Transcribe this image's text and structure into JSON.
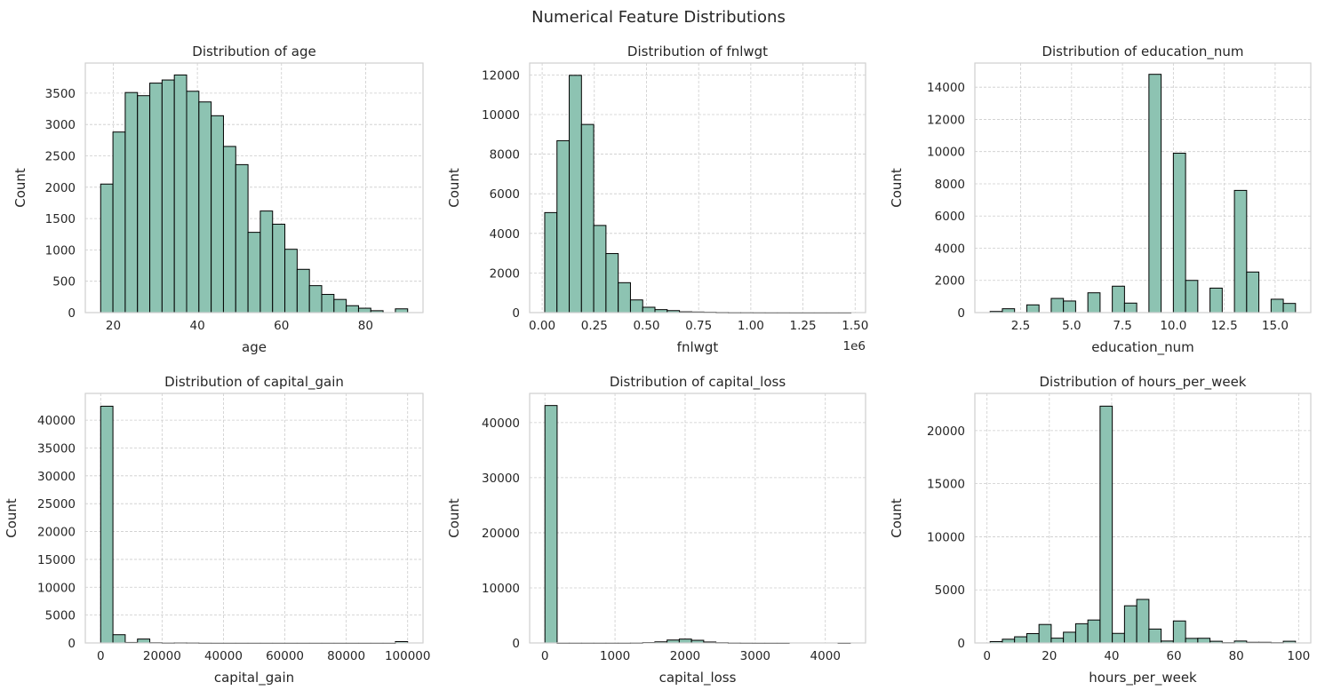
{
  "figure": {
    "title": "Numerical Feature Distributions",
    "bar_color": "#8dc3b2",
    "edge_color": "#000000"
  },
  "chart_data": [
    {
      "type": "bar",
      "title": "Distribution of age",
      "xlabel": "age",
      "ylabel": "Count",
      "xlim": [
        13.35,
        93.65
      ],
      "ylim": [
        0,
        3980
      ],
      "xticks": [
        20,
        40,
        60,
        80
      ],
      "xtick_labels": [
        "20",
        "40",
        "60",
        "80"
      ],
      "yticks": [
        0,
        500,
        1000,
        1500,
        2000,
        2500,
        3000,
        3500
      ],
      "ytick_labels": [
        "0",
        "500",
        "1000",
        "1500",
        "2000",
        "2500",
        "3000",
        "3500"
      ],
      "offset_label": "",
      "bin_edges": [
        17.0,
        19.92,
        22.84,
        25.76,
        28.68,
        31.6,
        34.52,
        37.44,
        40.36,
        43.28,
        46.2,
        49.12,
        52.04,
        54.96,
        57.88,
        60.8,
        63.72,
        66.64,
        69.56,
        72.48,
        75.4,
        78.32,
        81.24,
        84.16,
        87.08,
        90.0
      ],
      "counts": [
        2050,
        2880,
        3510,
        3460,
        3660,
        3710,
        3790,
        3530,
        3360,
        3140,
        2650,
        2360,
        1280,
        1620,
        1410,
        1010,
        690,
        430,
        290,
        210,
        110,
        70,
        30,
        0,
        60
      ],
      "grid": true
    },
    {
      "type": "bar",
      "title": "Distribution of fnlwgt",
      "xlabel": "fnlwgt",
      "ylabel": "Count",
      "xlim": [
        -60000,
        1550000
      ],
      "ylim": [
        0,
        12600
      ],
      "xticks": [
        0,
        250000,
        500000,
        750000,
        1000000,
        1250000,
        1500000
      ],
      "xtick_labels": [
        "0.00",
        "0.25",
        "0.50",
        "0.75",
        "1.00",
        "1.25",
        "1.50"
      ],
      "yticks": [
        0,
        2000,
        4000,
        6000,
        8000,
        10000,
        12000
      ],
      "ytick_labels": [
        "0",
        "2000",
        "4000",
        "6000",
        "8000",
        "10000",
        "12000"
      ],
      "offset_label": "1e6",
      "bin_edges": [
        12285,
        70990,
        129695,
        188400,
        247105,
        305810,
        364515,
        423220,
        481925,
        540630,
        599335,
        658040,
        716745,
        775450,
        834155,
        892860,
        951565,
        1010270,
        1068975,
        1127680,
        1186385,
        1245090,
        1303795,
        1362500,
        1421205,
        1479910
      ],
      "counts": [
        5050,
        8680,
        11980,
        9500,
        4400,
        2980,
        1510,
        640,
        270,
        150,
        100,
        40,
        30,
        20,
        10,
        5,
        5,
        3,
        2,
        2,
        1,
        1,
        1,
        1,
        1
      ],
      "grid": true
    },
    {
      "type": "bar",
      "title": "Distribution of education_num",
      "xlabel": "education_num",
      "ylabel": "Count",
      "xlim": [
        0.25,
        16.75
      ],
      "ylim": [
        0,
        15500
      ],
      "xticks": [
        2.5,
        5.0,
        7.5,
        10.0,
        12.5,
        15.0
      ],
      "xtick_labels": [
        "2.5",
        "5.0",
        "7.5",
        "10.0",
        "12.5",
        "15.0"
      ],
      "yticks": [
        0,
        2000,
        4000,
        6000,
        8000,
        10000,
        12000,
        14000
      ],
      "ytick_labels": [
        "0",
        "2000",
        "4000",
        "6000",
        "8000",
        "10000",
        "12000",
        "14000"
      ],
      "offset_label": "",
      "bin_edges": [
        1.0,
        1.6,
        2.2,
        2.8,
        3.4,
        4.0,
        4.6,
        5.2,
        5.8,
        6.4,
        7.0,
        7.6,
        8.2,
        8.8,
        9.4,
        10.0,
        10.6,
        11.2,
        11.8,
        12.4,
        13.0,
        13.6,
        14.2,
        14.8,
        15.4,
        16.0
      ],
      "counts": [
        70,
        240,
        0,
        480,
        0,
        880,
        720,
        0,
        1230,
        0,
        1640,
        590,
        0,
        14800,
        0,
        9900,
        2000,
        0,
        1520,
        0,
        7590,
        2520,
        0,
        830,
        570
      ],
      "grid": true
    },
    {
      "type": "bar",
      "title": "Distribution of capital_gain",
      "xlabel": "capital_gain",
      "ylabel": "Count",
      "xlim": [
        -5000,
        105000
      ],
      "ylim": [
        0,
        44800
      ],
      "xticks": [
        0,
        20000,
        40000,
        60000,
        80000,
        100000
      ],
      "xtick_labels": [
        "0",
        "20000",
        "40000",
        "60000",
        "80000",
        "100000"
      ],
      "yticks": [
        0,
        5000,
        10000,
        15000,
        20000,
        25000,
        30000,
        35000,
        40000
      ],
      "ytick_labels": [
        "0",
        "5000",
        "10000",
        "15000",
        "20000",
        "25000",
        "30000",
        "35000",
        "40000"
      ],
      "offset_label": "",
      "bin_edges": [
        0,
        3999.96,
        7999.92,
        11999.88,
        15999.84,
        19999.8,
        23999.76,
        27999.72,
        31999.68,
        35999.64,
        39999.6,
        43999.56,
        47999.52,
        51999.48,
        55999.44,
        59999.4,
        63999.36,
        67999.32,
        71999.28,
        75999.24,
        79999.2,
        83999.16,
        87999.12,
        91999.08,
        95999.04,
        99999.0
      ],
      "counts": [
        42500,
        1480,
        90,
        700,
        60,
        20,
        40,
        30,
        10,
        5,
        5,
        5,
        5,
        5,
        5,
        5,
        5,
        5,
        5,
        5,
        5,
        5,
        5,
        5,
        240
      ],
      "grid": true
    },
    {
      "type": "bar",
      "title": "Distribution of capital_loss",
      "xlabel": "capital_loss",
      "ylabel": "Count",
      "xlim": [
        -217.8,
        4573.8
      ],
      "ylim": [
        0,
        45300
      ],
      "xticks": [
        0,
        1000,
        2000,
        3000,
        4000
      ],
      "xtick_labels": [
        "0",
        "1000",
        "2000",
        "3000",
        "4000"
      ],
      "yticks": [
        0,
        10000,
        20000,
        30000,
        40000
      ],
      "ytick_labels": [
        "0",
        "10000",
        "20000",
        "30000",
        "40000"
      ],
      "offset_label": "",
      "bin_edges": [
        0,
        174.24,
        348.48,
        522.72,
        696.96,
        871.2,
        1045.44,
        1219.68,
        1393.92,
        1568.16,
        1742.4,
        1916.64,
        2090.88,
        2265.12,
        2439.36,
        2613.6,
        2787.84,
        2962.08,
        3136.32,
        3310.56,
        3484.8,
        3659.04,
        3833.28,
        4007.52,
        4181.76,
        4356.0
      ],
      "counts": [
        43100,
        10,
        10,
        10,
        10,
        10,
        10,
        20,
        80,
        200,
        530,
        700,
        480,
        170,
        60,
        20,
        10,
        5,
        5,
        5,
        0,
        0,
        0,
        0,
        5
      ],
      "grid": true
    },
    {
      "type": "bar",
      "title": "Distribution of hours_per_week",
      "xlabel": "hours_per_week",
      "ylabel": "Count",
      "xlim": [
        -3.9,
        103.9
      ],
      "ylim": [
        0,
        23500
      ],
      "xticks": [
        0,
        20,
        40,
        60,
        80,
        100
      ],
      "xtick_labels": [
        "0",
        "20",
        "40",
        "60",
        "80",
        "100"
      ],
      "yticks": [
        0,
        5000,
        10000,
        15000,
        20000
      ],
      "ytick_labels": [
        "0",
        "5000",
        "10000",
        "15000",
        "20000"
      ],
      "offset_label": "",
      "bin_edges": [
        1.0,
        4.92,
        8.84,
        12.76,
        16.68,
        20.6,
        24.52,
        28.44,
        32.36,
        36.28,
        40.2,
        44.12,
        48.04,
        51.96,
        55.88,
        59.8,
        63.72,
        67.64,
        71.56,
        75.48,
        79.4,
        83.32,
        87.24,
        91.16,
        95.08,
        99.0
      ],
      "counts": [
        130,
        350,
        580,
        880,
        1740,
        450,
        1010,
        1810,
        2160,
        22300,
        900,
        3500,
        4100,
        1310,
        180,
        2070,
        430,
        440,
        160,
        30,
        180,
        60,
        60,
        30,
        160
      ],
      "grid": true
    }
  ]
}
